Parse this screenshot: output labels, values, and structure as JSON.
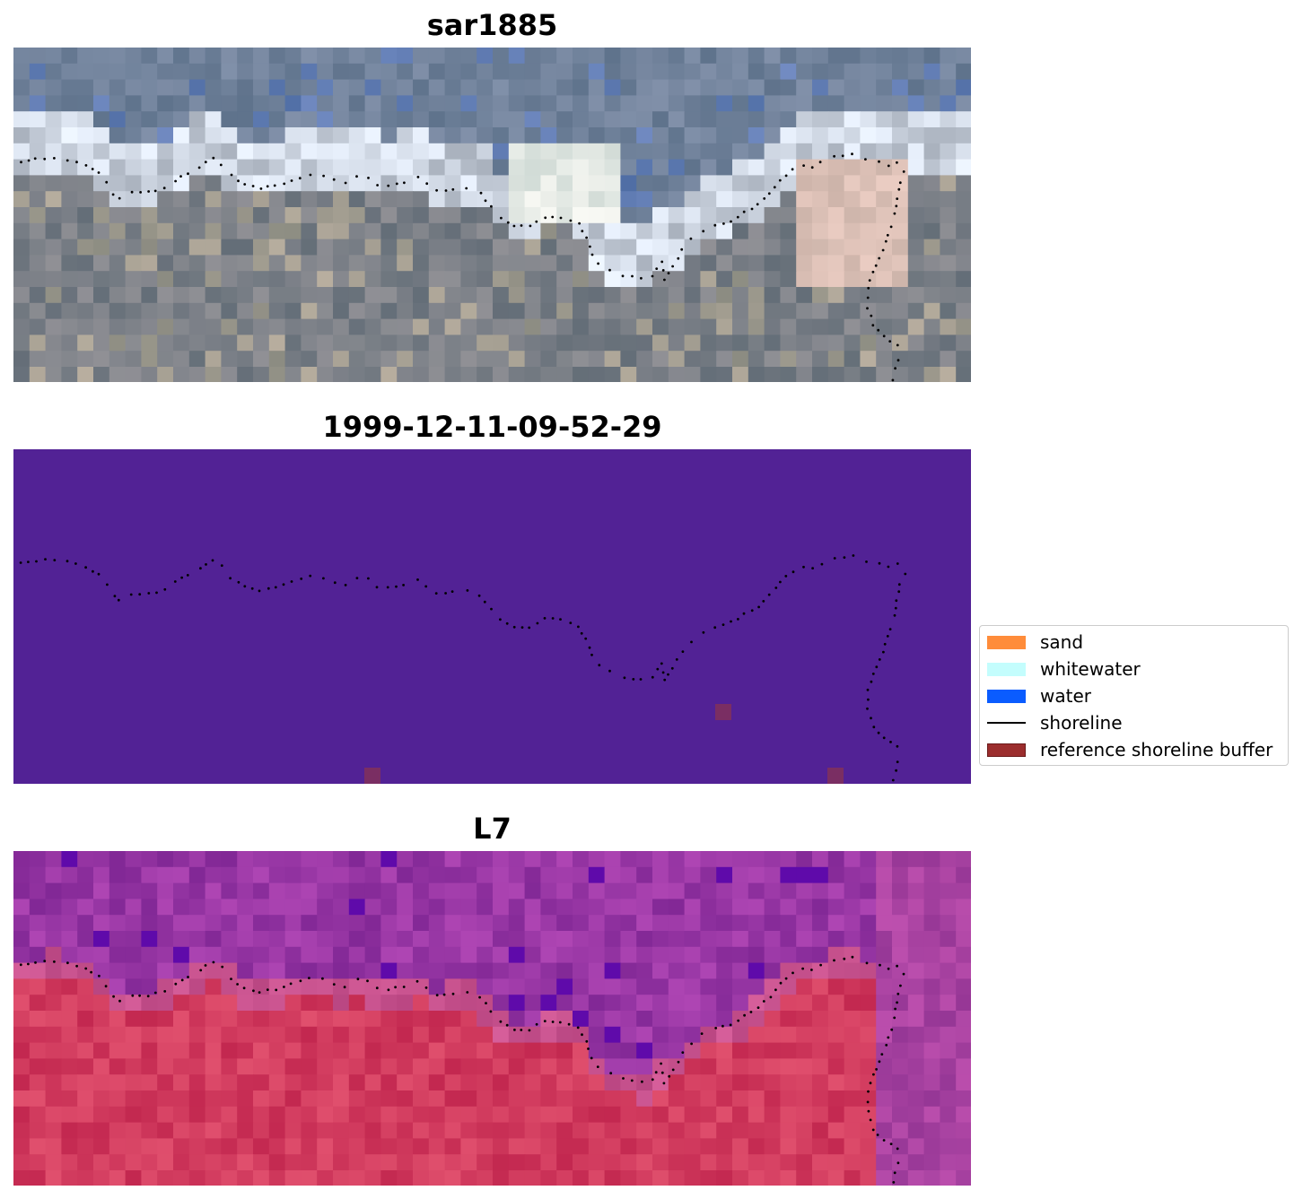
{
  "panels": [
    {
      "title": "sar1885",
      "kind": "rgb"
    },
    {
      "title": "1999-12-11-09-52-29",
      "kind": "classified"
    },
    {
      "title": "L7",
      "kind": "ndwi"
    }
  ],
  "legend": {
    "items": [
      {
        "label": "sand",
        "color": "#ff8c3a",
        "type": "patch"
      },
      {
        "label": "whitewater",
        "color": "#c4fdfd",
        "type": "patch"
      },
      {
        "label": "water",
        "color": "#0a5cff",
        "type": "patch"
      },
      {
        "label": "shoreline",
        "color": "#000000",
        "type": "line"
      },
      {
        "label": "reference shoreline buffer",
        "color": "#9b2d2d",
        "type": "patch"
      }
    ]
  },
  "colors": {
    "classified_background": "#522295",
    "buffer_pixel": "#7a2e63",
    "shoreline_dots": "#000000"
  }
}
